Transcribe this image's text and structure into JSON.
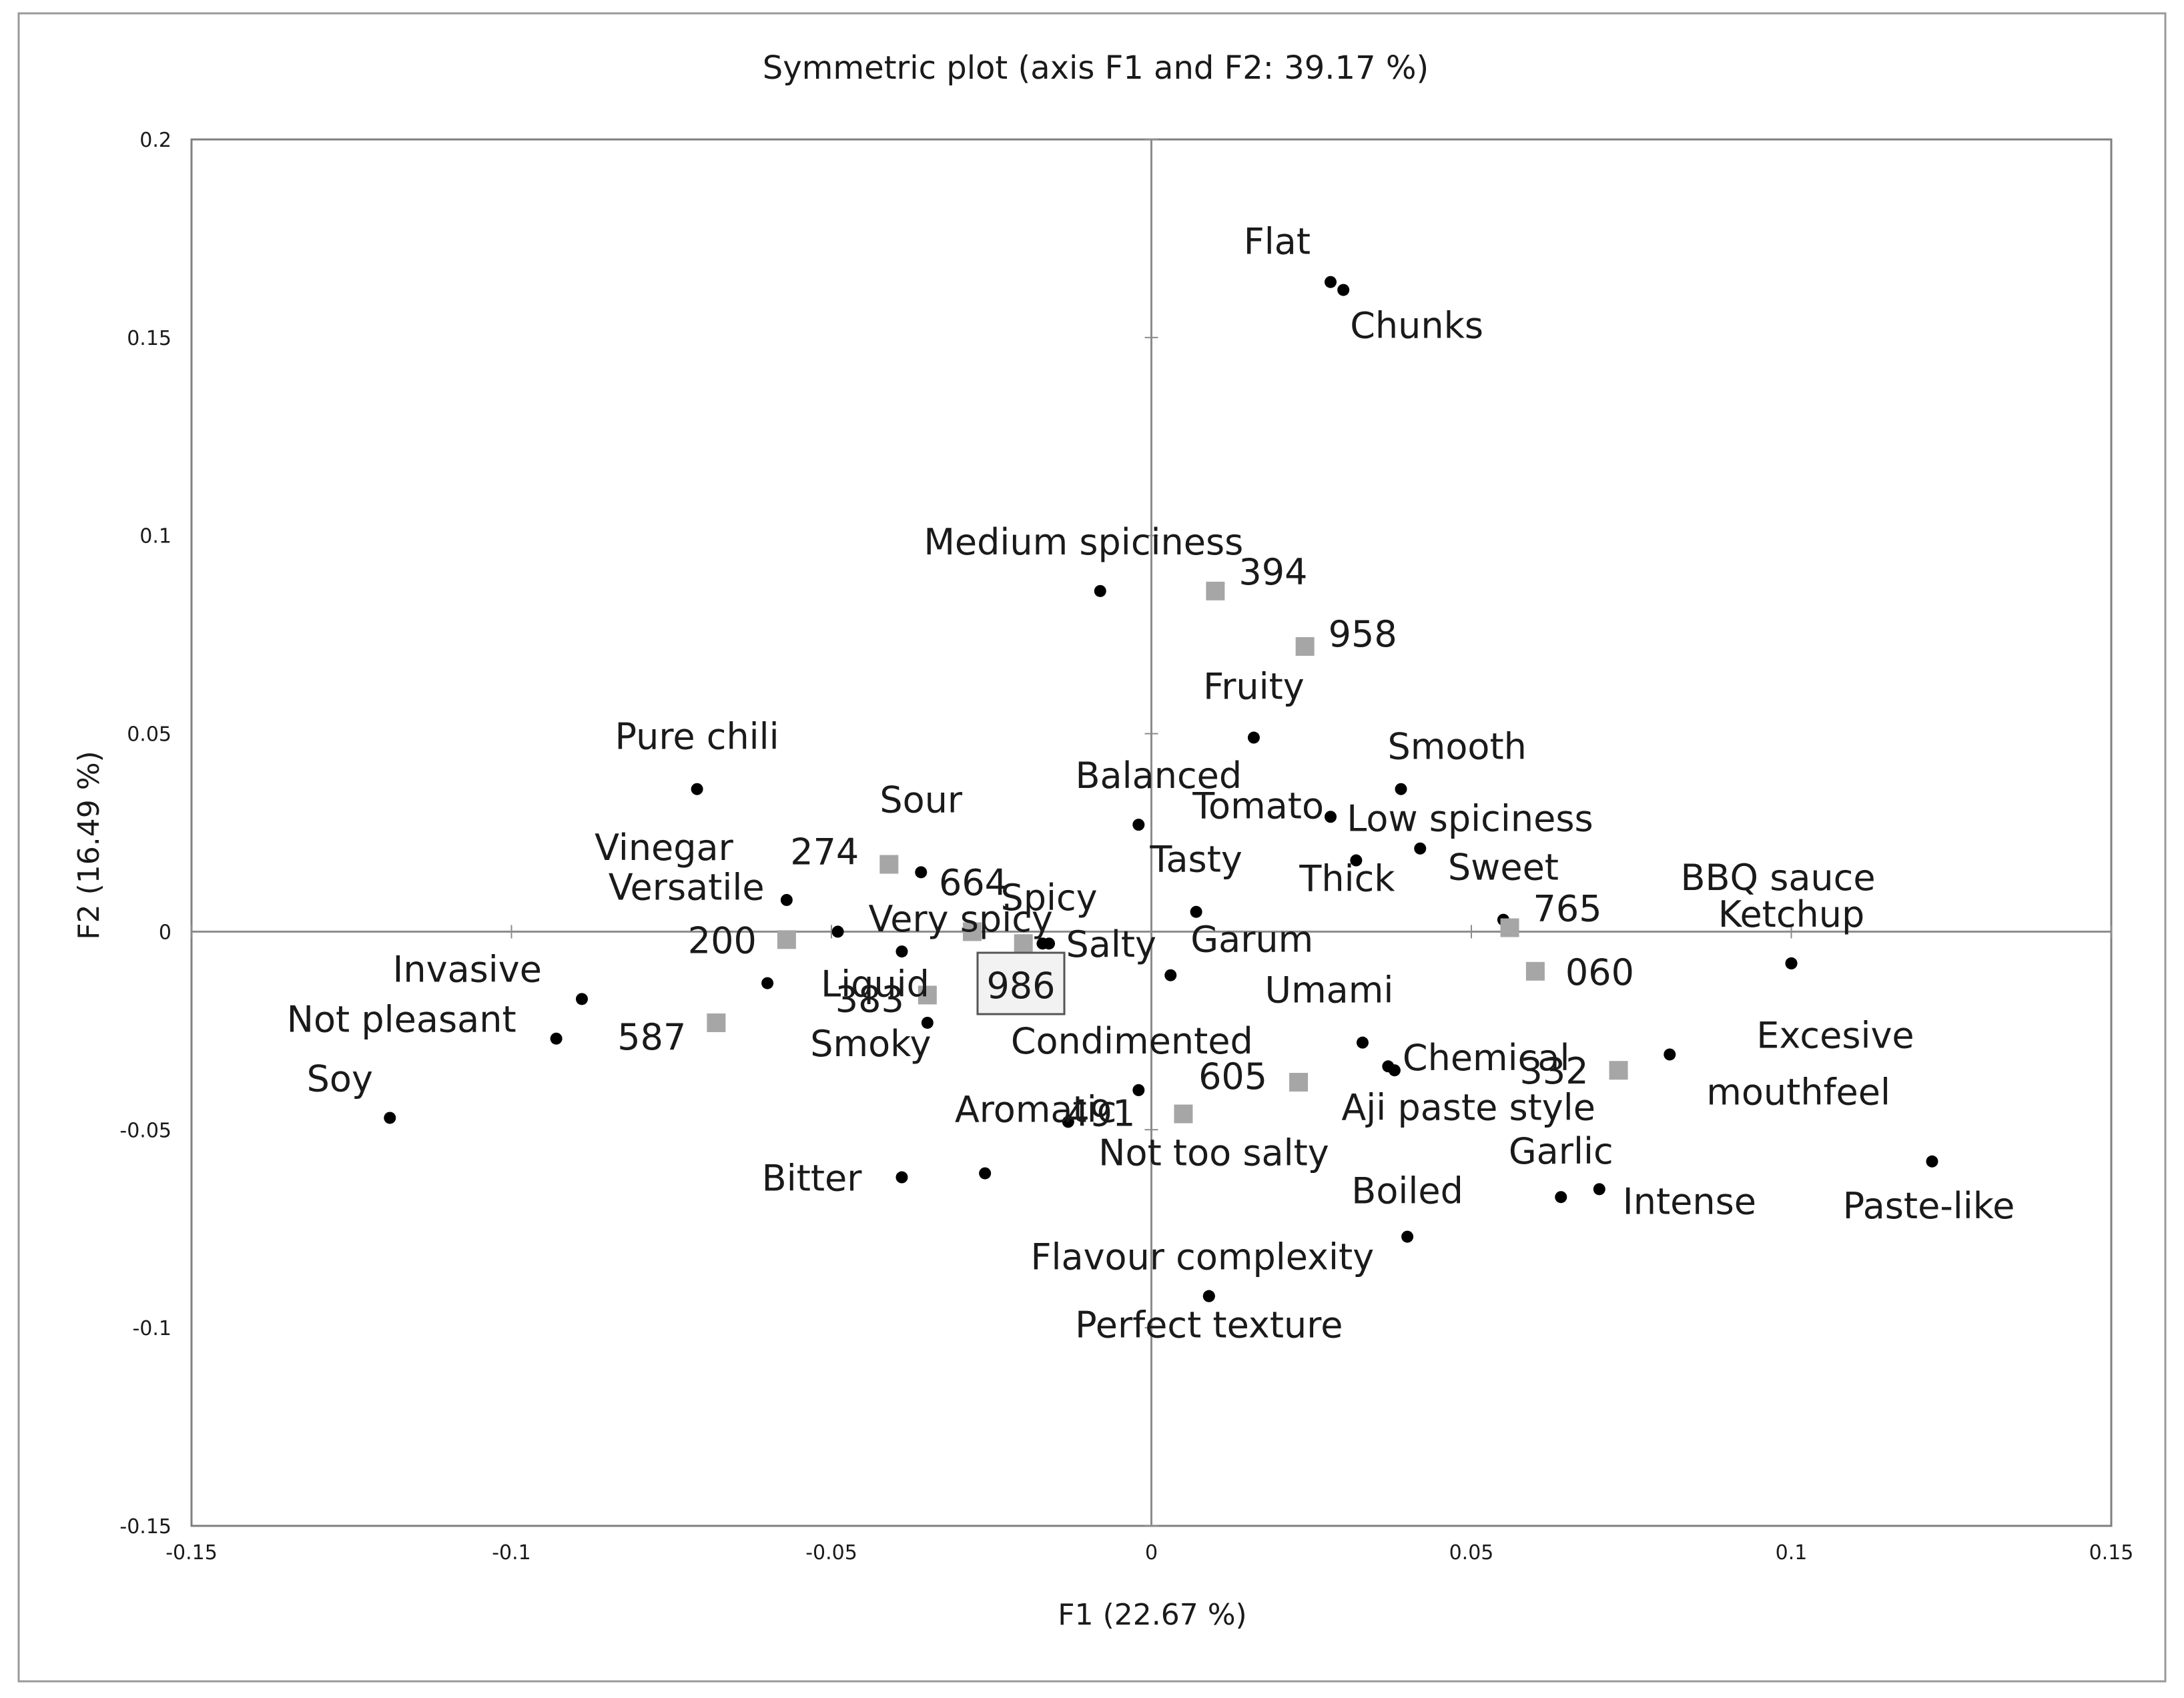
{
  "chart_data": {
    "type": "scatter",
    "title": "Symmetric plot (axis F1 and F2: 39.17 %)",
    "xlabel": "F1 (22.67 %)",
    "ylabel": "F2 (16.49 %)",
    "xlim": [
      -0.15,
      0.15
    ],
    "ylim": [
      -0.15,
      0.2
    ],
    "xticks": [
      "-0.15",
      "-0.1",
      "-0.05",
      "0",
      "0.05",
      "0.1",
      "0.15"
    ],
    "yticks": [
      "0.2",
      "0.15",
      "0.1",
      "0.05",
      "0",
      "-0.05",
      "-0.1",
      "-0.15"
    ],
    "grid": false,
    "legend": "none",
    "colors": {
      "attribute": "#000000",
      "product": "#a6a6a6",
      "axis": "#8c8c8c",
      "frame": "#7f7f7f"
    },
    "series": [
      {
        "kind": "attribute",
        "points": [
          {
            "label": "Flat",
            "x": 0.028,
            "y": 0.164
          },
          {
            "label": "Chunks",
            "x": 0.03,
            "y": 0.162
          },
          {
            "label": "Medium spiciness",
            "x": -0.008,
            "y": 0.086
          },
          {
            "label": "Fruity",
            "x": 0.016,
            "y": 0.049
          },
          {
            "label": "Smooth",
            "x": 0.039,
            "y": 0.036
          },
          {
            "label": "Tomato",
            "x": 0.028,
            "y": 0.029
          },
          {
            "label": "Low spiciness",
            "x": 0.042,
            "y": 0.021
          },
          {
            "label": "Thick",
            "x": 0.032,
            "y": 0.018
          },
          {
            "label": "Balanced",
            "x": -0.002,
            "y": 0.027
          },
          {
            "label": "Tasty",
            "x": 0.007,
            "y": 0.005
          },
          {
            "label": "Sweet",
            "x": 0.055,
            "y": 0.003
          },
          {
            "label": "Pure chili",
            "x": -0.071,
            "y": 0.036
          },
          {
            "label": "Vinegar",
            "x": -0.057,
            "y": 0.008
          },
          {
            "label": "Sour",
            "x": -0.036,
            "y": 0.015
          },
          {
            "label": "Versatile",
            "x": -0.049,
            "y": 0.0
          },
          {
            "label": "Very spicy",
            "x": -0.039,
            "y": -0.005
          },
          {
            "label": "Spicy",
            "x": -0.016,
            "y": -0.003
          },
          {
            "label": "Salty",
            "x": -0.017,
            "y": -0.003
          },
          {
            "label": "Garum",
            "x": 0.003,
            "y": -0.011
          },
          {
            "label": "Invasive",
            "x": -0.089,
            "y": -0.017
          },
          {
            "label": "Not pleasant",
            "x": -0.093,
            "y": -0.027
          },
          {
            "label": "Liquid",
            "x": -0.06,
            "y": -0.013
          },
          {
            "label": "Smoky",
            "x": -0.035,
            "y": -0.023
          },
          {
            "label": "Soy",
            "x": -0.119,
            "y": -0.047
          },
          {
            "label": "Umami",
            "x": 0.033,
            "y": -0.028
          },
          {
            "label": "Chemical",
            "x": 0.038,
            "y": -0.035
          },
          {
            "label": "Aji paste style",
            "x": 0.037,
            "y": -0.034
          },
          {
            "label": "Condimented",
            "x": -0.002,
            "y": -0.04
          },
          {
            "label": "BBQ sauce",
            "x": 0.1,
            "y": -0.008
          },
          {
            "label": "Ketchup",
            "x": 0.1,
            "y": -0.008
          },
          {
            "label": "Excesive mouthfeel",
            "x": 0.081,
            "y": -0.031
          },
          {
            "label": "Aromatic",
            "x": -0.013,
            "y": -0.048
          },
          {
            "label": "Bitter",
            "x": -0.039,
            "y": -0.062
          },
          {
            "label": "Not too salty",
            "x": -0.026,
            "y": -0.061
          },
          {
            "label": "Garlic",
            "x": 0.064,
            "y": -0.067
          },
          {
            "label": "Intense",
            "x": 0.07,
            "y": -0.065
          },
          {
            "label": "Boiled",
            "x": 0.04,
            "y": -0.077
          },
          {
            "label": "Paste-like",
            "x": 0.122,
            "y": -0.058
          },
          {
            "label": "Flavour complexity",
            "x": 0.009,
            "y": -0.092
          },
          {
            "label": "Perfect texture",
            "x": 0.009,
            "y": -0.092
          }
        ]
      },
      {
        "kind": "product",
        "points": [
          {
            "label": "394",
            "x": 0.01,
            "y": 0.086
          },
          {
            "label": "958",
            "x": 0.024,
            "y": 0.072
          },
          {
            "label": "274",
            "x": -0.041,
            "y": 0.017
          },
          {
            "label": "664",
            "x": -0.028,
            "y": 0.0
          },
          {
            "label": "200",
            "x": -0.057,
            "y": -0.002
          },
          {
            "label": "986",
            "x": -0.02,
            "y": -0.003
          },
          {
            "label": "383",
            "x": -0.035,
            "y": -0.016
          },
          {
            "label": "587",
            "x": -0.068,
            "y": -0.023
          },
          {
            "label": "765",
            "x": 0.056,
            "y": 0.001
          },
          {
            "label": "060",
            "x": 0.06,
            "y": -0.01
          },
          {
            "label": "332",
            "x": 0.073,
            "y": -0.035
          },
          {
            "label": "605",
            "x": 0.023,
            "y": -0.038
          },
          {
            "label": "491",
            "x": 0.005,
            "y": -0.046
          }
        ]
      }
    ]
  }
}
